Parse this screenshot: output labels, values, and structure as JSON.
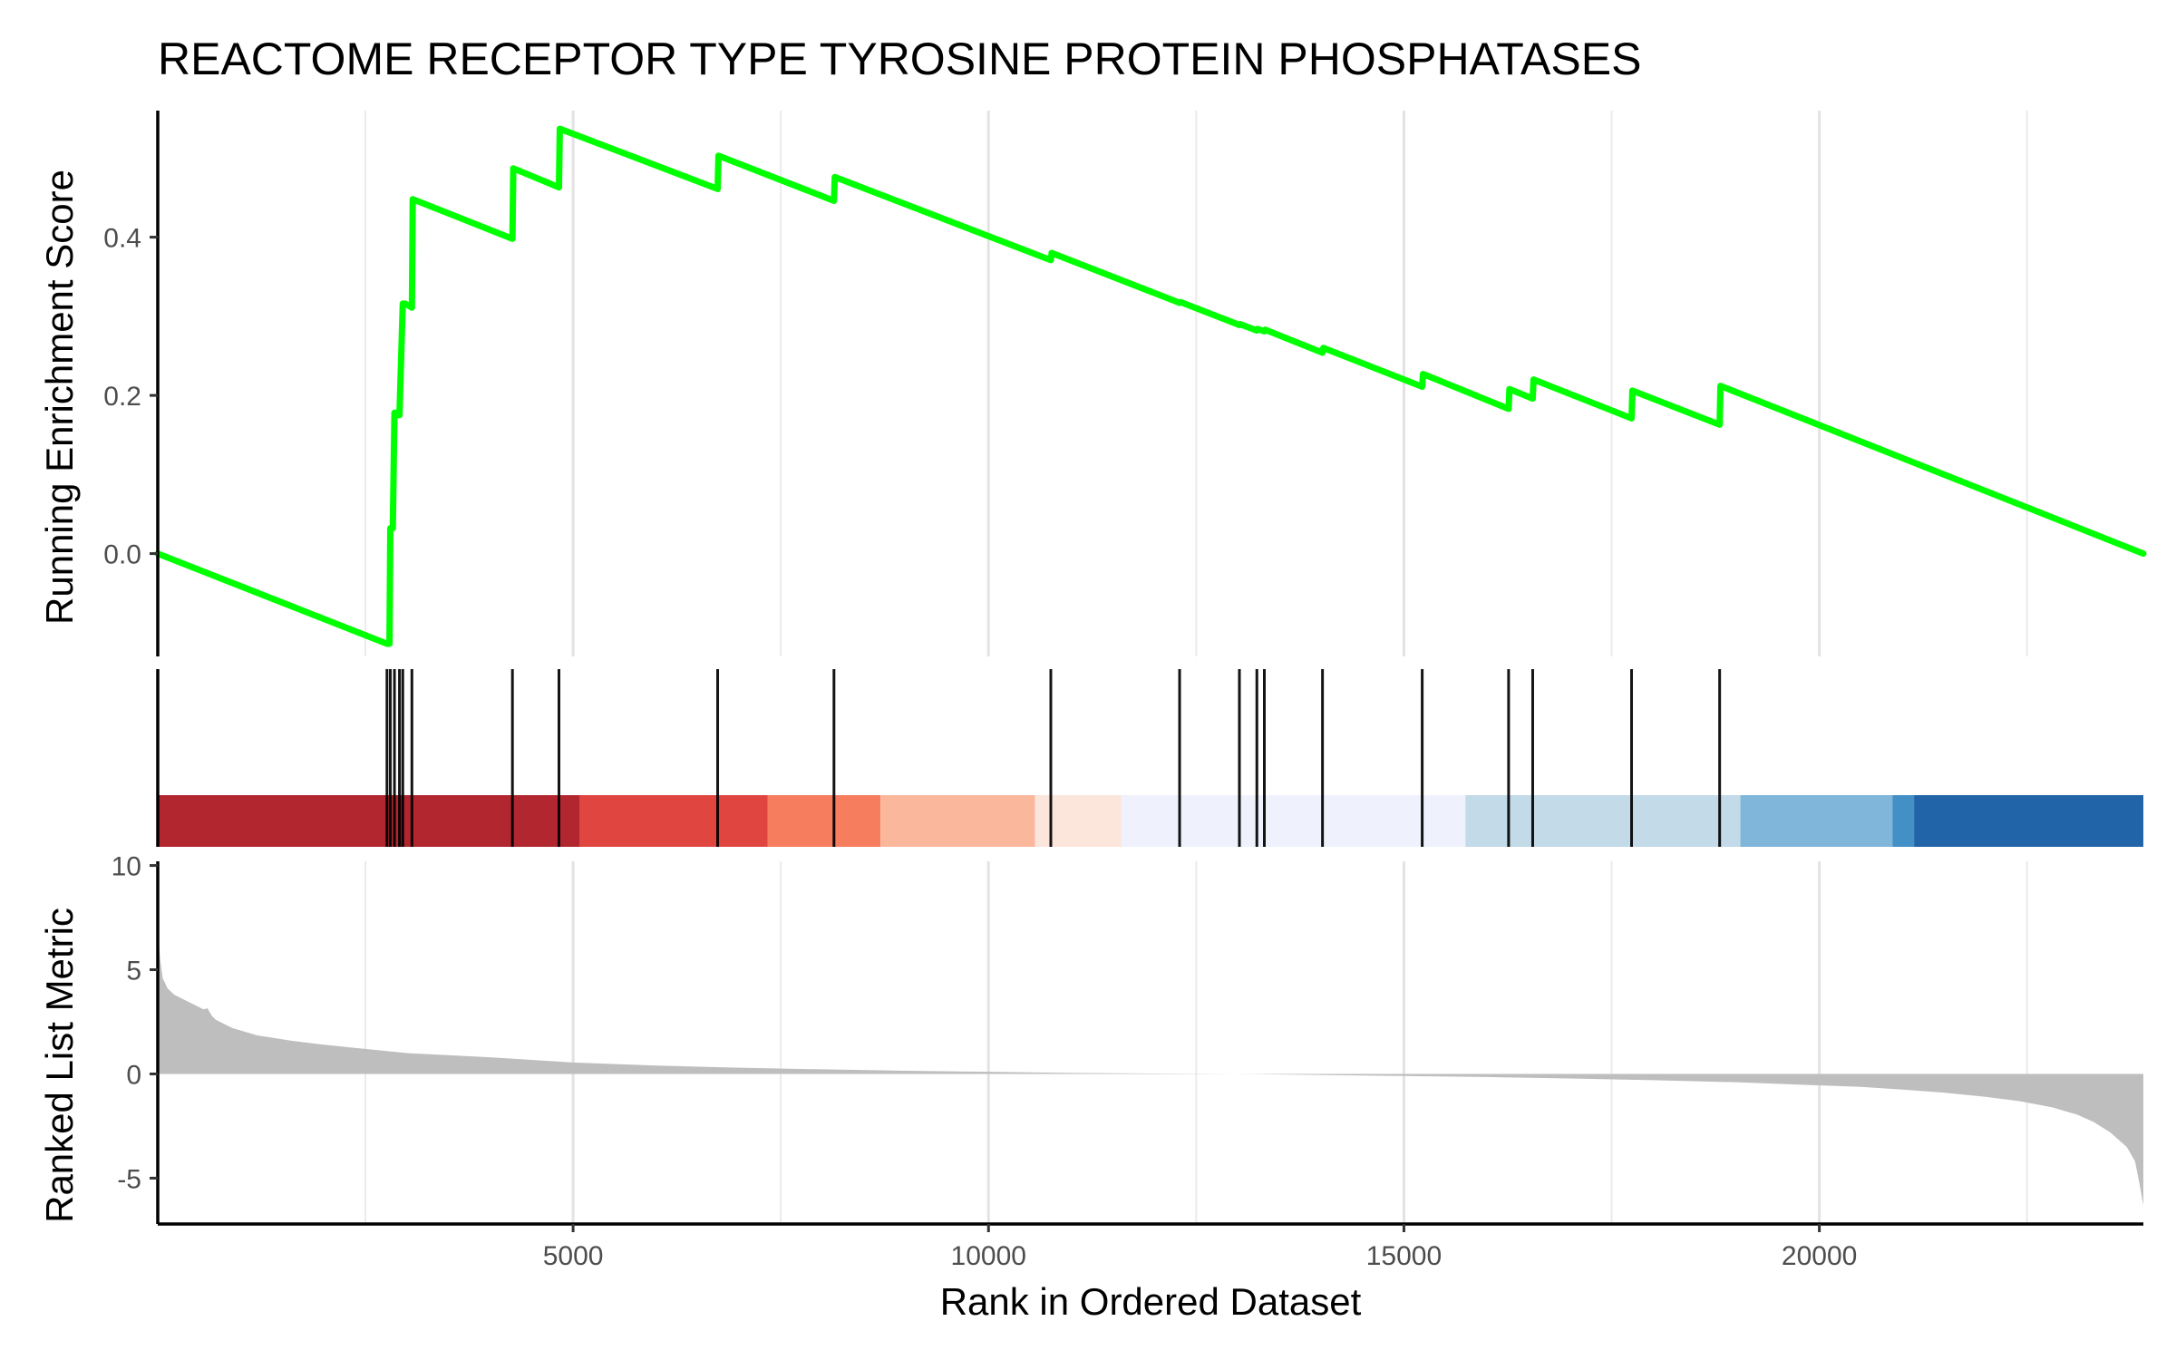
{
  "chart_data": {
    "type": "line",
    "title": "REACTOME RECEPTOR TYPE TYROSINE PROTEIN PHOSPHATASES",
    "xlabel": "Rank in Ordered Dataset",
    "xlim": [
      1,
      23900
    ],
    "x_ticks": [
      5000,
      10000,
      15000,
      20000
    ],
    "grid": "vertical minor and major lines",
    "panels": {
      "running_score": {
        "ylabel": "Running Enrichment Score",
        "ylim": [
          -0.13,
          0.56
        ],
        "y_ticks": [
          "0.0",
          "0.2",
          "0.4"
        ],
        "y_tick_values": [
          0.0,
          0.2,
          0.4
        ],
        "line_color": "#00FF00",
        "series": [
          {
            "x": [
              1,
              2760,
              2790,
              2800,
              2830,
              2850,
              2880,
              2900,
              2910,
              2950,
              2980,
              3060,
              3070,
              4270,
              4280,
              4830,
              4840,
              6740,
              6750,
              8140,
              8150,
              10750,
              10760,
              12300,
              12310,
              13020,
              13030,
              13230,
              13240,
              13320,
              13330,
              14020,
              14030,
              15220,
              15230,
              16260,
              16270,
              16550,
              16560,
              17740,
              17750,
              18800,
              18810,
              23900
            ],
            "y": [
              0.0,
              -0.114,
              -0.114,
              0.032,
              0.032,
              0.178,
              0.178,
              0.175,
              0.175,
              0.316,
              0.316,
              0.311,
              0.448,
              0.398,
              0.487,
              0.463,
              0.537,
              0.461,
              0.503,
              0.446,
              0.476,
              0.371,
              0.38,
              0.317,
              0.318,
              0.289,
              0.29,
              0.282,
              0.284,
              0.281,
              0.283,
              0.254,
              0.26,
              0.211,
              0.227,
              0.183,
              0.208,
              0.196,
              0.22,
              0.171,
              0.206,
              0.163,
              0.212,
              0.0
            ]
          }
        ]
      },
      "hits": {
        "x": [
          2760,
          2800,
          2850,
          2910,
          2950,
          3060,
          4270,
          4830,
          6740,
          8140,
          10750,
          12300,
          13020,
          13230,
          13320,
          14020,
          15220,
          16260,
          16550,
          17740,
          18800
        ]
      },
      "rank_bands": {
        "bands": [
          {
            "start": 1,
            "end": 5080,
            "color": "#B2272F"
          },
          {
            "start": 5080,
            "end": 7340,
            "color": "#E0463F"
          },
          {
            "start": 7340,
            "end": 8700,
            "color": "#F67E5F"
          },
          {
            "start": 8700,
            "end": 10560,
            "color": "#FBB79C"
          },
          {
            "start": 10560,
            "end": 11600,
            "color": "#FCE6DC"
          },
          {
            "start": 11600,
            "end": 15740,
            "color": "#EFF2FD"
          },
          {
            "start": 15740,
            "end": 19050,
            "color": "#C3DAE8"
          },
          {
            "start": 19050,
            "end": 20880,
            "color": "#7FB6D9"
          },
          {
            "start": 20880,
            "end": 21140,
            "color": "#4390C7"
          },
          {
            "start": 21140,
            "end": 23900,
            "color": "#2165A8"
          }
        ]
      },
      "ranked_metric": {
        "ylabel": "Ranked List Metric",
        "ylim": [
          -7.2,
          10.2
        ],
        "y_ticks": [
          "-5",
          "0",
          "5",
          "10"
        ],
        "y_tick_values": [
          -5,
          0,
          5,
          10
        ],
        "fill_color": "#BEBEBE",
        "series": [
          {
            "x": [
              1,
              30,
              60,
              120,
              200,
              350,
              500,
              550,
              600,
              650,
              700,
              900,
              1200,
              1600,
              2000,
              2500,
              3000,
              4000,
              5000,
              6000,
              7000,
              8000,
              9000,
              10000,
              11000,
              12000,
              13000,
              14000,
              15000,
              16000,
              17000,
              18000,
              19000,
              20000,
              20500,
              21000,
              21500,
              22000,
              22400,
              22800,
              23100,
              23300,
              23500,
              23700,
              23800,
              23850,
              23900
            ],
            "y": [
              7.1,
              5.5,
              4.6,
              4.1,
              3.8,
              3.5,
              3.2,
              3.1,
              3.15,
              2.8,
              2.6,
              2.2,
              1.85,
              1.6,
              1.4,
              1.2,
              1.0,
              0.8,
              0.55,
              0.4,
              0.3,
              0.22,
              0.15,
              0.1,
              0.05,
              0.02,
              0.0,
              -0.05,
              -0.1,
              -0.15,
              -0.22,
              -0.3,
              -0.4,
              -0.55,
              -0.62,
              -0.75,
              -0.9,
              -1.1,
              -1.3,
              -1.6,
              -1.95,
              -2.3,
              -2.8,
              -3.5,
              -4.2,
              -5.2,
              -6.3
            ]
          }
        ]
      }
    }
  }
}
